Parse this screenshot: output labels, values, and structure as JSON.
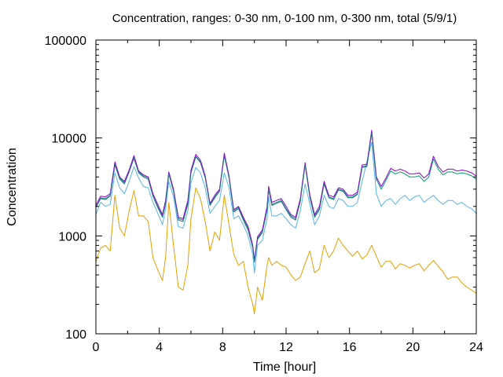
{
  "chart_data": {
    "type": "line",
    "title": "Concentration, ranges: 0-30 nm, 0-100 nm, 0-300 nm, total (5/9/1)",
    "xlabel": "Time [hour]",
    "ylabel": "Concentration",
    "xlim": [
      0,
      24
    ],
    "ylim": [
      100,
      100000
    ],
    "yscale": "log",
    "grid": false,
    "legend": "none",
    "x_ticks": [
      0,
      4,
      8,
      12,
      16,
      20,
      24
    ],
    "y_ticks": [
      100,
      1000,
      10000,
      100000
    ],
    "x_tick_labels": [
      "0",
      "4",
      "8",
      "12",
      "16",
      "20",
      "24"
    ],
    "y_tick_labels": [
      "100",
      "1000",
      "10000",
      "100000"
    ],
    "series": [
      {
        "color": "#e69f00",
        "x": [
          0,
          0.3,
          0.6,
          0.9,
          1.2,
          1.5,
          1.8,
          2.1,
          2.4,
          2.7,
          3.0,
          3.3,
          3.6,
          3.9,
          4.2,
          4.4,
          4.6,
          4.9,
          5.2,
          5.5,
          5.8,
          6.0,
          6.3,
          6.6,
          6.9,
          7.2,
          7.5,
          7.8,
          8.1,
          8.4,
          8.7,
          9.0,
          9.3,
          9.6,
          9.9,
          10.0,
          10.2,
          10.5,
          10.8,
          10.9,
          11.1,
          11.4,
          11.7,
          12.0,
          12.3,
          12.6,
          12.9,
          13.2,
          13.5,
          13.8,
          14.1,
          14.4,
          14.7,
          15.0,
          15.3,
          15.6,
          15.9,
          16.2,
          16.5,
          16.8,
          17.1,
          17.4,
          17.7,
          18.0,
          18.3,
          18.6,
          18.9,
          19.2,
          19.5,
          19.8,
          20.1,
          20.4,
          20.7,
          21.0,
          21.3,
          21.6,
          21.9,
          22.2,
          22.5,
          22.8,
          23.1,
          23.4,
          23.7,
          24.0
        ],
        "values": [
          550,
          750,
          800,
          700,
          2600,
          1200,
          1000,
          1800,
          2900,
          1600,
          1600,
          1400,
          600,
          450,
          350,
          600,
          2200,
          800,
          300,
          280,
          500,
          1500,
          3100,
          2400,
          1400,
          700,
          1100,
          900,
          2600,
          1300,
          650,
          500,
          550,
          300,
          200,
          160,
          300,
          220,
          500,
          600,
          500,
          550,
          500,
          480,
          400,
          350,
          380,
          520,
          700,
          420,
          460,
          800,
          600,
          700,
          950,
          800,
          700,
          620,
          700,
          580,
          640,
          800,
          620,
          480,
          550,
          550,
          460,
          520,
          500,
          470,
          500,
          520,
          440,
          500,
          560,
          490,
          430,
          360,
          380,
          380,
          330,
          300,
          280,
          260
        ]
      },
      {
        "color": "#56b4e9",
        "x": [
          0,
          0.3,
          0.6,
          0.9,
          1.2,
          1.5,
          1.8,
          2.1,
          2.4,
          2.7,
          3.0,
          3.3,
          3.6,
          3.9,
          4.2,
          4.4,
          4.6,
          4.9,
          5.2,
          5.5,
          5.8,
          6.0,
          6.3,
          6.6,
          6.9,
          7.2,
          7.5,
          7.8,
          8.1,
          8.4,
          8.7,
          9.0,
          9.3,
          9.6,
          9.9,
          10.0,
          10.2,
          10.5,
          10.8,
          10.9,
          11.1,
          11.4,
          11.7,
          12.0,
          12.3,
          12.6,
          12.9,
          13.2,
          13.5,
          13.8,
          14.1,
          14.4,
          14.7,
          15.0,
          15.3,
          15.6,
          15.9,
          16.2,
          16.5,
          16.8,
          17.1,
          17.4,
          17.7,
          18.0,
          18.3,
          18.6,
          18.9,
          19.2,
          19.5,
          19.8,
          20.1,
          20.4,
          20.7,
          21.0,
          21.3,
          21.6,
          21.9,
          22.2,
          22.5,
          22.8,
          23.1,
          23.4,
          23.7,
          24.0
        ],
        "values": [
          1650,
          2200,
          2000,
          2100,
          4400,
          3100,
          2700,
          3600,
          5100,
          3900,
          3200,
          3100,
          2200,
          1700,
          1300,
          1900,
          3600,
          2500,
          1250,
          1200,
          1800,
          3500,
          5000,
          4400,
          3100,
          1700,
          2000,
          2300,
          4400,
          3100,
          1500,
          1600,
          1300,
          1000,
          650,
          420,
          800,
          900,
          1500,
          2500,
          1600,
          1600,
          1700,
          1500,
          1300,
          1200,
          1800,
          3400,
          2100,
          1300,
          1600,
          2600,
          2000,
          1900,
          2400,
          2300,
          2000,
          2000,
          2200,
          3600,
          5800,
          9000,
          2700,
          2000,
          2300,
          2400,
          2100,
          2400,
          2600,
          2300,
          2500,
          2600,
          2200,
          2400,
          2600,
          2300,
          2100,
          2300,
          2300,
          2100,
          2200,
          2000,
          1900,
          1700
        ]
      },
      {
        "color": "#009e73",
        "x": [
          0,
          0.3,
          0.6,
          0.9,
          1.2,
          1.5,
          1.8,
          2.1,
          2.4,
          2.7,
          3.0,
          3.3,
          3.6,
          3.9,
          4.2,
          4.4,
          4.6,
          4.9,
          5.2,
          5.5,
          5.8,
          6.0,
          6.3,
          6.6,
          6.9,
          7.2,
          7.5,
          7.8,
          8.1,
          8.4,
          8.7,
          9.0,
          9.3,
          9.6,
          9.9,
          10.0,
          10.2,
          10.5,
          10.8,
          10.9,
          11.1,
          11.4,
          11.7,
          12.0,
          12.3,
          12.6,
          12.9,
          13.2,
          13.5,
          13.8,
          14.1,
          14.4,
          14.7,
          15.0,
          15.3,
          15.6,
          15.9,
          16.2,
          16.5,
          16.8,
          17.1,
          17.4,
          17.7,
          18.0,
          18.3,
          18.6,
          18.9,
          19.2,
          19.5,
          19.8,
          20.1,
          20.4,
          20.7,
          21.0,
          21.3,
          21.6,
          21.9,
          22.2,
          22.5,
          22.8,
          23.1,
          23.4,
          23.7,
          24.0
        ],
        "values": [
          1950,
          2450,
          2400,
          2600,
          5400,
          3900,
          3500,
          4600,
          6300,
          4500,
          4100,
          3900,
          2600,
          2000,
          1600,
          2200,
          4400,
          2900,
          1500,
          1450,
          2200,
          4500,
          6500,
          5700,
          4000,
          2100,
          2500,
          2900,
          6700,
          4000,
          1800,
          1950,
          1500,
          1200,
          780,
          550,
          950,
          1100,
          1900,
          3100,
          2100,
          2200,
          2300,
          1900,
          1600,
          1500,
          2300,
          5400,
          2500,
          1600,
          1900,
          3500,
          2500,
          2400,
          3000,
          2900,
          2500,
          2500,
          2700,
          5100,
          5200,
          11500,
          3800,
          3000,
          3700,
          4600,
          4300,
          4500,
          4300,
          4000,
          4000,
          4100,
          3600,
          4000,
          6100,
          4800,
          4200,
          4500,
          4500,
          4300,
          4400,
          4300,
          4100,
          3800
        ]
      },
      {
        "color": "#9400d3",
        "x": [
          0,
          0.3,
          0.6,
          0.9,
          1.2,
          1.5,
          1.8,
          2.1,
          2.4,
          2.7,
          3.0,
          3.3,
          3.6,
          3.9,
          4.2,
          4.4,
          4.6,
          4.9,
          5.2,
          5.5,
          5.8,
          6.0,
          6.3,
          6.6,
          6.9,
          7.2,
          7.5,
          7.8,
          8.1,
          8.4,
          8.7,
          9.0,
          9.3,
          9.6,
          9.9,
          10.0,
          10.2,
          10.5,
          10.8,
          10.9,
          11.1,
          11.4,
          11.7,
          12.0,
          12.3,
          12.6,
          12.9,
          13.2,
          13.5,
          13.8,
          14.1,
          14.4,
          14.7,
          15.0,
          15.3,
          15.6,
          15.9,
          16.2,
          16.5,
          16.8,
          17.1,
          17.4,
          17.7,
          18.0,
          18.3,
          18.6,
          18.9,
          19.2,
          19.5,
          19.8,
          20.1,
          20.4,
          20.7,
          21.0,
          21.3,
          21.6,
          21.9,
          22.2,
          22.5,
          22.8,
          23.1,
          23.4,
          23.7,
          24.0
        ],
        "values": [
          2050,
          2550,
          2500,
          2700,
          5700,
          4000,
          3600,
          4700,
          6600,
          4600,
          4200,
          4000,
          2700,
          2100,
          1650,
          2300,
          4500,
          3000,
          1550,
          1500,
          2300,
          4700,
          6800,
          5900,
          4100,
          2150,
          2600,
          3000,
          7000,
          4100,
          1850,
          2000,
          1550,
          1250,
          800,
          570,
          980,
          1150,
          2000,
          3200,
          2200,
          2300,
          2400,
          2000,
          1650,
          1550,
          2400,
          5600,
          2600,
          1650,
          2000,
          3600,
          2600,
          2500,
          3100,
          3000,
          2600,
          2600,
          2800,
          5300,
          5400,
          12000,
          4000,
          3200,
          3900,
          4900,
          4600,
          4800,
          4600,
          4300,
          4300,
          4400,
          3900,
          4300,
          6500,
          5100,
          4500,
          4800,
          4800,
          4600,
          4700,
          4600,
          4400,
          4100
        ]
      },
      {
        "color": "#2c6e8a",
        "x": [
          0,
          0.3,
          0.6,
          0.9,
          1.2,
          1.5,
          1.8,
          2.1,
          2.4,
          2.7,
          3.0,
          3.3,
          3.6,
          3.9,
          4.2,
          4.4,
          4.6,
          4.9,
          5.2,
          5.5,
          5.8,
          6.0,
          6.3,
          6.6,
          6.9,
          7.2,
          7.5,
          7.8,
          8.1,
          8.4,
          8.7,
          9.0,
          9.3,
          9.6,
          9.9,
          10.0,
          10.2,
          10.5,
          10.8,
          10.9,
          11.1,
          11.4,
          11.7,
          12.0,
          12.3,
          12.6,
          12.9,
          13.2,
          13.5,
          13.8,
          14.1,
          14.4,
          14.7,
          15.0,
          15.3,
          15.6,
          15.9,
          16.2,
          16.5,
          16.8,
          17.1,
          17.4,
          17.7
        ],
        "values": [
          1950,
          2400,
          2350,
          2550,
          5300,
          3800,
          3400,
          4500,
          6200,
          4400,
          4000,
          3800,
          2550,
          1950,
          1550,
          2150,
          4300,
          2850,
          1450,
          1400,
          2100,
          4400,
          6400,
          5600,
          3900,
          2050,
          2450,
          2850,
          6600,
          3900,
          1750,
          1900,
          1450,
          1150,
          760,
          540,
          920,
          1080,
          1850,
          3000,
          2050,
          2150,
          2250,
          1850,
          1550,
          1450,
          2250,
          5300,
          2450,
          1550,
          1850,
          3400,
          2450,
          2350,
          2950,
          2850,
          2450,
          2450,
          2650,
          5000,
          5100,
          11300,
          3700
        ]
      }
    ]
  }
}
